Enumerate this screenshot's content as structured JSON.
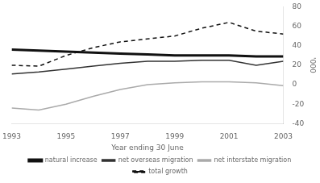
{
  "chart_data": {
    "type": "line",
    "xlabel": "Year ending 30 June",
    "ylabel": "'000",
    "x": [
      1993,
      1994,
      1995,
      1996,
      1997,
      1998,
      1999,
      2000,
      2001,
      2002,
      2003
    ],
    "series": [
      {
        "name": "natural increase",
        "color": "#111111",
        "line_style": "solid",
        "values": [
          36,
          35,
          34,
          33,
          32,
          31,
          30,
          30,
          30,
          29,
          29
        ]
      },
      {
        "name": "net overseas migration",
        "color": "#333333",
        "line_style": "solid",
        "values": [
          11,
          13,
          16,
          19,
          22,
          24,
          24,
          25,
          25,
          20,
          24
        ]
      },
      {
        "name": "net interstate migration",
        "color": "#aaaaaa",
        "line_style": "solid",
        "values": [
          -24,
          -26,
          -20,
          -12,
          -5,
          0,
          2,
          3,
          3,
          2,
          -1
        ]
      },
      {
        "name": "total growth",
        "color": "#111111",
        "line_style": "dashed",
        "values": [
          20,
          19,
          30,
          38,
          44,
          47,
          50,
          58,
          64,
          55,
          52
        ]
      }
    ],
    "xlim": [
      1993,
      2003
    ],
    "xticks": [
      1993,
      1995,
      1997,
      1999,
      2001,
      2003
    ],
    "ylim": [
      -40,
      80
    ],
    "yticks": [
      -40,
      -20,
      0,
      20,
      40,
      60,
      80
    ],
    "grid": false,
    "legend": "bottom"
  }
}
